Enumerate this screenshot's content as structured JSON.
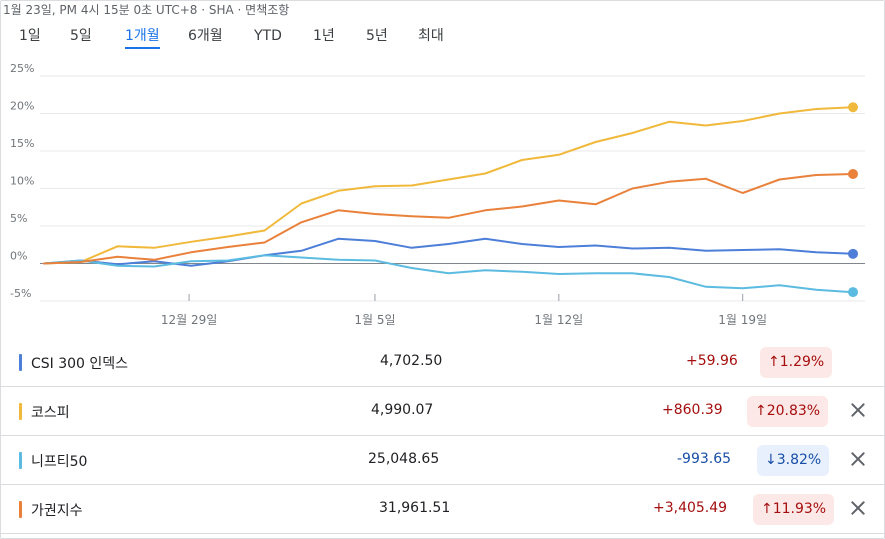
{
  "header": {
    "timestamp": "1월 23일, PM 4시 15분 0초 UTC+8 · SHA · 면책조항"
  },
  "tabs": [
    {
      "label": "1일",
      "active": false
    },
    {
      "label": "5일",
      "active": false
    },
    {
      "label": "1개월",
      "active": true
    },
    {
      "label": "6개월",
      "active": false
    },
    {
      "label": "YTD",
      "active": false
    },
    {
      "label": "1년",
      "active": false
    },
    {
      "label": "5년",
      "active": false
    },
    {
      "label": "최대",
      "active": false
    }
  ],
  "chart_data": {
    "type": "line",
    "ylim": [
      -5,
      25
    ],
    "yticks": [
      "25%",
      "20%",
      "15%",
      "10%",
      "5%",
      "0%",
      "-5%"
    ],
    "ytick_values": [
      25,
      20,
      15,
      10,
      5,
      0,
      -5
    ],
    "xticks": [
      "12월 29일",
      "1월 5일",
      "1월 12일",
      "1월 19일"
    ],
    "xtick_positions": [
      4,
      9,
      14,
      19
    ],
    "grid": "horizontal",
    "legend": "none",
    "series": [
      {
        "name": "CSI 300 인덱스",
        "color": "#4d7ed8",
        "x": [
          0,
          1,
          2,
          3,
          4,
          5,
          6,
          7,
          8,
          9,
          10,
          11,
          12,
          13,
          14,
          15,
          16,
          17,
          18,
          19,
          20,
          21,
          22
        ],
        "values": [
          0,
          0.4,
          -0.1,
          0.3,
          -0.3,
          0.3,
          1.1,
          1.7,
          3.3,
          3.0,
          2.1,
          2.6,
          3.3,
          2.6,
          2.2,
          2.4,
          2.0,
          2.1,
          1.7,
          1.8,
          1.9,
          1.5,
          1.29
        ]
      },
      {
        "name": "코스피",
        "color": "#f0b93b",
        "x": [
          0,
          1,
          2,
          3,
          4,
          5,
          6,
          7,
          8,
          9,
          10,
          11,
          12,
          13,
          14,
          15,
          16,
          17,
          18,
          19,
          20,
          21,
          22
        ],
        "values": [
          0,
          0.2,
          2.3,
          2.1,
          2.9,
          3.6,
          4.4,
          8.0,
          9.7,
          10.3,
          10.4,
          11.2,
          12.0,
          13.8,
          14.5,
          16.2,
          17.4,
          18.9,
          18.4,
          19.0,
          20.0,
          20.6,
          20.83
        ]
      },
      {
        "name": "니프티50",
        "color": "#5bbbe0",
        "x": [
          0,
          1,
          2,
          3,
          4,
          5,
          6,
          7,
          8,
          9,
          10,
          11,
          12,
          13,
          14,
          15,
          16,
          17,
          18,
          19,
          20,
          21,
          22
        ],
        "values": [
          0,
          0.4,
          -0.3,
          -0.4,
          0.3,
          0.4,
          1.1,
          0.8,
          0.5,
          0.4,
          -0.6,
          -1.3,
          -0.9,
          -1.1,
          -1.4,
          -1.3,
          -1.3,
          -1.8,
          -3.1,
          -3.3,
          -2.9,
          -3.5,
          -3.82
        ]
      },
      {
        "name": "가권지수",
        "color": "#e9813b",
        "x": [
          0,
          1,
          2,
          3,
          4,
          5,
          6,
          7,
          8,
          9,
          10,
          11,
          12,
          13,
          14,
          15,
          16,
          17,
          18,
          19,
          20,
          21,
          22
        ],
        "values": [
          0,
          0.2,
          0.9,
          0.5,
          1.5,
          2.2,
          2.8,
          5.5,
          7.1,
          6.6,
          6.3,
          6.1,
          7.1,
          7.6,
          8.4,
          7.9,
          10.0,
          10.9,
          11.3,
          9.4,
          11.2,
          11.8,
          11.93
        ]
      }
    ]
  },
  "rows": [
    {
      "name": "CSI 300 인덱스",
      "color": "#4d7ed8",
      "price": "4,702.50",
      "change": "+59.96",
      "pct": "↑1.29%",
      "dir": "up",
      "removable": false
    },
    {
      "name": "코스피",
      "color": "#f0b93b",
      "price": "4,990.07",
      "change": "+860.39",
      "pct": "↑20.83%",
      "dir": "up",
      "removable": true
    },
    {
      "name": "니프티50",
      "color": "#5bbbe0",
      "price": "25,048.65",
      "change": "-993.65",
      "pct": "↓3.82%",
      "dir": "down",
      "removable": true
    },
    {
      "name": "가권지수",
      "color": "#e9813b",
      "price": "31,961.51",
      "change": "+3,405.49",
      "pct": "↑11.93%",
      "dir": "up",
      "removable": true
    }
  ]
}
